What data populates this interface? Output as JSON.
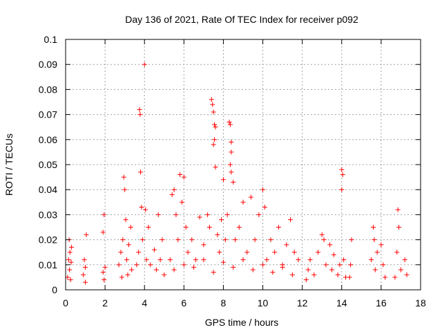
{
  "chart_data": {
    "type": "scatter",
    "title": "Day 136 of 2021, Rate Of TEC Index for receiver p092",
    "xlabel": "GPS time / hours",
    "ylabel": "ROTI / TECUs",
    "xlim": [
      0,
      18
    ],
    "ylim": [
      0,
      0.1
    ],
    "x_ticks": [
      0,
      2,
      4,
      6,
      8,
      10,
      12,
      14,
      16,
      18
    ],
    "y_ticks": [
      0,
      0.01,
      0.02,
      0.03,
      0.04,
      0.05,
      0.06,
      0.07,
      0.08,
      0.09,
      0.1
    ],
    "x_tick_labels": [
      "0",
      "2",
      "4",
      "6",
      "8",
      "10",
      "12",
      "14",
      "16",
      "18"
    ],
    "y_tick_labels": [
      "0",
      "0.01",
      "0.02",
      "0.03",
      "0.04",
      "0.05",
      "0.06",
      "0.07",
      "0.08",
      "0.09",
      "0.1"
    ],
    "grid": true,
    "marker": "+",
    "marker_color": "#ff0000",
    "series": [
      {
        "points": [
          [
            0.1,
            0.005
          ],
          [
            0.15,
            0.012
          ],
          [
            0.18,
            0.02
          ],
          [
            0.2,
            0.008
          ],
          [
            0.22,
            0.015
          ],
          [
            0.25,
            0.004
          ],
          [
            0.28,
            0.011
          ],
          [
            0.3,
            0.017
          ],
          [
            0.9,
            0.006
          ],
          [
            0.95,
            0.012
          ],
          [
            1.0,
            0.009
          ],
          [
            1.05,
            0.022
          ],
          [
            1.0,
            0.003
          ],
          [
            1.9,
            0.007
          ],
          [
            1.95,
            0.004
          ],
          [
            2.0,
            0.009
          ],
          [
            1.95,
            0.03
          ],
          [
            1.9,
            0.023
          ],
          [
            2.7,
            0.01
          ],
          [
            2.8,
            0.015
          ],
          [
            2.9,
            0.02
          ],
          [
            2.95,
            0.045
          ],
          [
            3.0,
            0.04
          ],
          [
            3.05,
            0.028
          ],
          [
            3.1,
            0.012
          ],
          [
            3.2,
            0.018
          ],
          [
            3.3,
            0.025
          ],
          [
            3.35,
            0.008
          ],
          [
            2.85,
            0.005
          ],
          [
            3.15,
            0.006
          ],
          [
            3.6,
            0.01
          ],
          [
            3.7,
            0.015
          ],
          [
            3.75,
            0.072
          ],
          [
            3.78,
            0.07
          ],
          [
            3.8,
            0.047
          ],
          [
            3.85,
            0.033
          ],
          [
            3.9,
            0.02
          ],
          [
            4.0,
            0.09
          ],
          [
            4.05,
            0.032
          ],
          [
            4.1,
            0.012
          ],
          [
            4.2,
            0.025
          ],
          [
            4.3,
            0.01
          ],
          [
            4.5,
            0.016
          ],
          [
            4.6,
            0.008
          ],
          [
            4.7,
            0.03
          ],
          [
            4.8,
            0.012
          ],
          [
            4.9,
            0.02
          ],
          [
            5.0,
            0.006
          ],
          [
            5.3,
            0.012
          ],
          [
            5.4,
            0.038
          ],
          [
            5.5,
            0.04
          ],
          [
            5.6,
            0.03
          ],
          [
            5.7,
            0.02
          ],
          [
            5.8,
            0.046
          ],
          [
            5.9,
            0.035
          ],
          [
            6.0,
            0.045
          ],
          [
            6.1,
            0.025
          ],
          [
            6.2,
            0.015
          ],
          [
            6.4,
            0.02
          ],
          [
            6.6,
            0.012
          ],
          [
            6.8,
            0.029
          ],
          [
            7.0,
            0.018
          ],
          [
            7.2,
            0.03
          ],
          [
            7.3,
            0.025
          ],
          [
            7.4,
            0.076
          ],
          [
            7.45,
            0.074
          ],
          [
            7.5,
            0.071
          ],
          [
            7.55,
            0.066
          ],
          [
            7.6,
            0.065
          ],
          [
            7.5,
            0.058
          ],
          [
            7.55,
            0.06
          ],
          [
            7.6,
            0.049
          ],
          [
            7.7,
            0.022
          ],
          [
            7.8,
            0.015
          ],
          [
            7.9,
            0.028
          ],
          [
            8.0,
            0.044
          ],
          [
            8.1,
            0.02
          ],
          [
            8.2,
            0.03
          ],
          [
            8.3,
            0.067
          ],
          [
            8.35,
            0.066
          ],
          [
            8.4,
            0.059
          ],
          [
            8.4,
            0.055
          ],
          [
            8.35,
            0.05
          ],
          [
            8.4,
            0.047
          ],
          [
            8.5,
            0.043
          ],
          [
            8.6,
            0.02
          ],
          [
            8.8,
            0.025
          ],
          [
            9.0,
            0.035
          ],
          [
            9.2,
            0.015
          ],
          [
            9.4,
            0.037
          ],
          [
            9.6,
            0.02
          ],
          [
            9.8,
            0.03
          ],
          [
            10.0,
            0.04
          ],
          [
            10.1,
            0.033
          ],
          [
            10.2,
            0.012
          ],
          [
            10.4,
            0.02
          ],
          [
            10.6,
            0.015
          ],
          [
            10.8,
            0.025
          ],
          [
            11.0,
            0.01
          ],
          [
            11.2,
            0.018
          ],
          [
            11.4,
            0.028
          ],
          [
            11.6,
            0.015
          ],
          [
            11.8,
            0.012
          ],
          [
            5.5,
            0.008
          ],
          [
            6.0,
            0.01
          ],
          [
            6.5,
            0.009
          ],
          [
            7.0,
            0.012
          ],
          [
            7.5,
            0.007
          ],
          [
            8.0,
            0.011
          ],
          [
            8.5,
            0.009
          ],
          [
            9.0,
            0.012
          ],
          [
            9.5,
            0.008
          ],
          [
            10.0,
            0.01
          ],
          [
            10.5,
            0.007
          ],
          [
            11.0,
            0.009
          ],
          [
            11.5,
            0.006
          ],
          [
            12.2,
            0.004
          ],
          [
            12.3,
            0.008
          ],
          [
            12.4,
            0.012
          ],
          [
            12.6,
            0.006
          ],
          [
            12.8,
            0.015
          ],
          [
            13.0,
            0.022
          ],
          [
            13.1,
            0.02
          ],
          [
            13.2,
            0.01
          ],
          [
            13.4,
            0.018
          ],
          [
            13.5,
            0.008
          ],
          [
            13.6,
            0.014
          ],
          [
            13.8,
            0.006
          ],
          [
            13.9,
            0.01
          ],
          [
            14.0,
            0.048
          ],
          [
            14.05,
            0.046
          ],
          [
            14.0,
            0.04
          ],
          [
            14.1,
            0.012
          ],
          [
            14.2,
            0.005
          ],
          [
            14.4,
            0.005
          ],
          [
            14.5,
            0.02
          ],
          [
            14.45,
            0.01
          ],
          [
            15.5,
            0.012
          ],
          [
            15.6,
            0.025
          ],
          [
            15.65,
            0.02
          ],
          [
            15.7,
            0.008
          ],
          [
            15.8,
            0.015
          ],
          [
            16.0,
            0.018
          ],
          [
            16.1,
            0.01
          ],
          [
            16.2,
            0.005
          ],
          [
            16.7,
            0.005
          ],
          [
            16.8,
            0.015
          ],
          [
            16.85,
            0.032
          ],
          [
            16.9,
            0.025
          ],
          [
            17.0,
            0.008
          ],
          [
            17.2,
            0.012
          ],
          [
            17.3,
            0.006
          ]
        ]
      }
    ]
  }
}
